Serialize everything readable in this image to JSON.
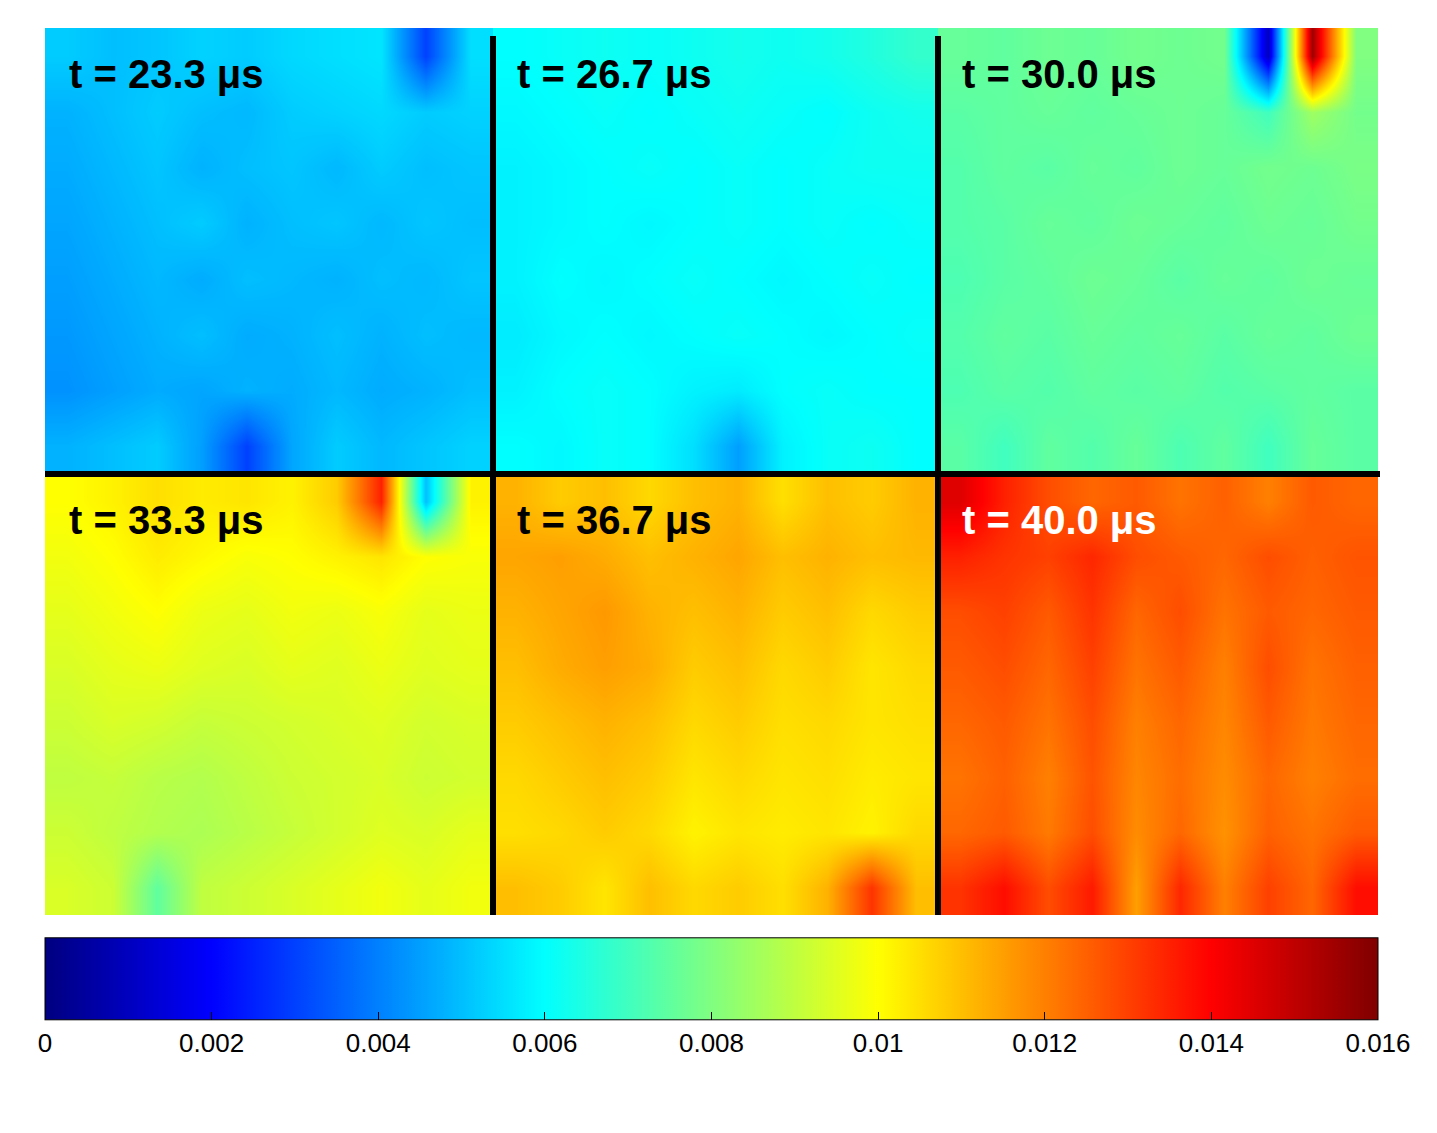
{
  "chart_data": {
    "type": "heatmap",
    "tick_labels": false,
    "colorbar": {
      "range": [
        0,
        0.016
      ],
      "ticks": [
        0,
        0.002,
        0.004,
        0.006,
        0.008,
        0.01,
        0.012,
        0.014,
        0.016
      ]
    },
    "panels": [
      {
        "title": "t = 23.3 μs",
        "cells": [
          [
            0.0052,
            0.005,
            0.0051,
            0.0053,
            0.0052,
            0.0054,
            0.0055,
            0.0056,
            0.003,
            0.0055
          ],
          [
            0.0048,
            0.005,
            0.0052,
            0.005,
            0.0049,
            0.0052,
            0.0053,
            0.0054,
            0.0052,
            0.0053
          ],
          [
            0.0047,
            0.0049,
            0.0051,
            0.0048,
            0.005,
            0.0051,
            0.0049,
            0.0052,
            0.005,
            0.0051
          ],
          [
            0.0046,
            0.0048,
            0.005,
            0.0052,
            0.0048,
            0.005,
            0.0051,
            0.0049,
            0.0051,
            0.005
          ],
          [
            0.0045,
            0.0047,
            0.0049,
            0.0047,
            0.005,
            0.0049,
            0.0048,
            0.005,
            0.0049,
            0.0051
          ],
          [
            0.0044,
            0.0046,
            0.0048,
            0.005,
            0.0047,
            0.0048,
            0.005,
            0.0048,
            0.005,
            0.0049
          ],
          [
            0.0043,
            0.0045,
            0.0047,
            0.0046,
            0.0048,
            0.0047,
            0.0049,
            0.0047,
            0.0048,
            0.005
          ],
          [
            0.0048,
            0.005,
            0.0052,
            0.0045,
            0.003,
            0.0046,
            0.0052,
            0.0049,
            0.0051,
            0.0053
          ]
        ]
      },
      {
        "title": "t = 26.7 μs",
        "cells": [
          [
            0.006,
            0.0061,
            0.0062,
            0.0061,
            0.0062,
            0.0063,
            0.0062,
            0.0063,
            0.0065,
            0.0068
          ],
          [
            0.0059,
            0.006,
            0.0061,
            0.006,
            0.0061,
            0.0062,
            0.0061,
            0.006,
            0.0062,
            0.0063
          ],
          [
            0.0058,
            0.0059,
            0.006,
            0.0061,
            0.006,
            0.0061,
            0.006,
            0.0061,
            0.0062,
            0.0062
          ],
          [
            0.0058,
            0.0059,
            0.006,
            0.0059,
            0.006,
            0.0061,
            0.006,
            0.0061,
            0.006,
            0.0061
          ],
          [
            0.0058,
            0.006,
            0.0059,
            0.006,
            0.0061,
            0.006,
            0.0059,
            0.006,
            0.0061,
            0.006
          ],
          [
            0.0057,
            0.0059,
            0.006,
            0.0059,
            0.006,
            0.0061,
            0.006,
            0.0059,
            0.006,
            0.0061
          ],
          [
            0.0058,
            0.006,
            0.0061,
            0.006,
            0.0058,
            0.0057,
            0.006,
            0.0061,
            0.006,
            0.006
          ],
          [
            0.006,
            0.0059,
            0.0061,
            0.006,
            0.0055,
            0.0045,
            0.0058,
            0.0061,
            0.0062,
            0.006
          ]
        ]
      },
      {
        "title": "t = 30.0 μs",
        "cells": [
          [
            0.0076,
            0.0075,
            0.0077,
            0.0076,
            0.0078,
            0.0077,
            0.0078,
            0.001,
            0.0155,
            0.008
          ],
          [
            0.0074,
            0.0075,
            0.0076,
            0.0075,
            0.0076,
            0.0077,
            0.0076,
            0.007,
            0.0085,
            0.0078
          ],
          [
            0.0073,
            0.0075,
            0.0074,
            0.0076,
            0.0075,
            0.0077,
            0.0076,
            0.0078,
            0.0077,
            0.0079
          ],
          [
            0.0073,
            0.0074,
            0.0076,
            0.0075,
            0.0077,
            0.0076,
            0.0075,
            0.0077,
            0.0076,
            0.0078
          ],
          [
            0.0072,
            0.0074,
            0.0075,
            0.0077,
            0.0076,
            0.0074,
            0.0076,
            0.0075,
            0.0077,
            0.0076
          ],
          [
            0.0073,
            0.0075,
            0.0074,
            0.0076,
            0.0075,
            0.0076,
            0.0074,
            0.0076,
            0.0075,
            0.0077
          ],
          [
            0.0072,
            0.0074,
            0.0073,
            0.0075,
            0.0074,
            0.0075,
            0.0073,
            0.0074,
            0.0075,
            0.0074
          ],
          [
            0.0074,
            0.007,
            0.0075,
            0.0073,
            0.0076,
            0.0072,
            0.0075,
            0.007,
            0.0076,
            0.0074
          ]
        ]
      },
      {
        "title": "t = 33.3 μs",
        "cells": [
          [
            0.01,
            0.0102,
            0.0105,
            0.0103,
            0.0104,
            0.0102,
            0.0108,
            0.0135,
            0.005,
            0.0102
          ],
          [
            0.0098,
            0.01,
            0.0103,
            0.0101,
            0.0099,
            0.01,
            0.0102,
            0.0104,
            0.01,
            0.0099
          ],
          [
            0.0096,
            0.0098,
            0.01,
            0.0097,
            0.0096,
            0.0098,
            0.0097,
            0.0099,
            0.0096,
            0.0097
          ],
          [
            0.0094,
            0.0096,
            0.0097,
            0.0095,
            0.0094,
            0.0096,
            0.0095,
            0.0097,
            0.0095,
            0.0096
          ],
          [
            0.0092,
            0.0094,
            0.0093,
            0.0091,
            0.0092,
            0.0093,
            0.0094,
            0.0095,
            0.0093,
            0.0094
          ],
          [
            0.009,
            0.0091,
            0.0089,
            0.0088,
            0.009,
            0.0092,
            0.0093,
            0.0094,
            0.0092,
            0.0093
          ],
          [
            0.0092,
            0.009,
            0.0088,
            0.0087,
            0.0089,
            0.0091,
            0.0093,
            0.0095,
            0.0094,
            0.0096
          ],
          [
            0.0094,
            0.0092,
            0.0075,
            0.009,
            0.0092,
            0.0094,
            0.0096,
            0.0098,
            0.0096,
            0.0098
          ]
        ]
      },
      {
        "title": "t = 36.7 μs",
        "cells": [
          [
            0.0112,
            0.0108,
            0.011,
            0.0106,
            0.011,
            0.0112,
            0.0105,
            0.011,
            0.0108,
            0.0112
          ],
          [
            0.0114,
            0.0115,
            0.0113,
            0.011,
            0.0112,
            0.0114,
            0.011,
            0.0112,
            0.011,
            0.0111
          ],
          [
            0.0112,
            0.0114,
            0.0116,
            0.0112,
            0.011,
            0.0112,
            0.0108,
            0.011,
            0.0106,
            0.0108
          ],
          [
            0.011,
            0.0113,
            0.0115,
            0.0113,
            0.0108,
            0.011,
            0.0106,
            0.0108,
            0.0104,
            0.0106
          ],
          [
            0.0108,
            0.011,
            0.0112,
            0.011,
            0.0106,
            0.0108,
            0.0105,
            0.0106,
            0.0104,
            0.0105
          ],
          [
            0.0106,
            0.0108,
            0.011,
            0.0108,
            0.0104,
            0.0106,
            0.0104,
            0.0105,
            0.0103,
            0.0104
          ],
          [
            0.0105,
            0.0106,
            0.0108,
            0.0106,
            0.0102,
            0.0104,
            0.0103,
            0.0104,
            0.0102,
            0.0106
          ],
          [
            0.011,
            0.0108,
            0.0104,
            0.011,
            0.0106,
            0.0108,
            0.0105,
            0.0112,
            0.0132,
            0.011
          ]
        ]
      },
      {
        "title": "t = 40.0 μs",
        "cells": [
          [
            0.0145,
            0.0135,
            0.0128,
            0.0124,
            0.0126,
            0.0122,
            0.0125,
            0.012,
            0.0126,
            0.0124
          ],
          [
            0.0135,
            0.0132,
            0.013,
            0.0134,
            0.0128,
            0.0126,
            0.0124,
            0.0128,
            0.0125,
            0.0127
          ],
          [
            0.0128,
            0.013,
            0.0126,
            0.0132,
            0.0124,
            0.0128,
            0.0122,
            0.0126,
            0.0124,
            0.0126
          ],
          [
            0.0126,
            0.0128,
            0.0124,
            0.013,
            0.0122,
            0.0126,
            0.012,
            0.0128,
            0.0122,
            0.0125
          ],
          [
            0.0124,
            0.0126,
            0.0122,
            0.0128,
            0.012,
            0.0124,
            0.0119,
            0.0126,
            0.0121,
            0.0124
          ],
          [
            0.0122,
            0.0125,
            0.012,
            0.0127,
            0.0119,
            0.0123,
            0.0118,
            0.0124,
            0.012,
            0.0123
          ],
          [
            0.0124,
            0.0126,
            0.0121,
            0.0128,
            0.0118,
            0.0124,
            0.0117,
            0.0125,
            0.0122,
            0.0126
          ],
          [
            0.0132,
            0.0138,
            0.0128,
            0.0136,
            0.0115,
            0.0134,
            0.012,
            0.013,
            0.0124,
            0.0138
          ]
        ]
      }
    ]
  }
}
